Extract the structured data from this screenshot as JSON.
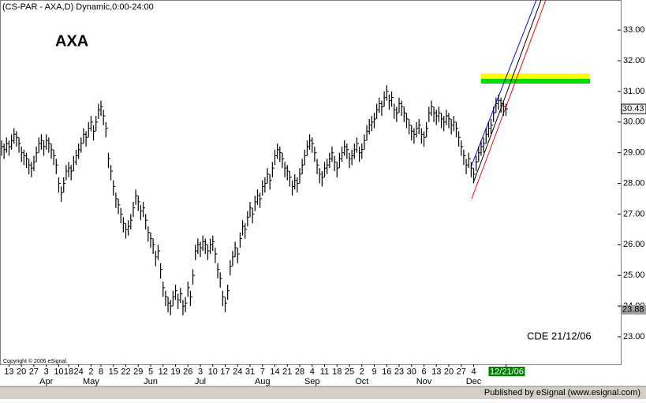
{
  "chart_data": {
    "type": "hlc",
    "header": "(CS-PAR - AXA,D) Dynamic,0:00-24:00",
    "title": "AXA",
    "annotation": "CDE 21/12/06",
    "copyright": "Copyright © 2006 eSignal.",
    "footer": "Published by eSignal (www.esignal.com)",
    "color": "#000000",
    "ylim": [
      22.1,
      33.98
    ],
    "yticks": [
      {
        "value": 33,
        "label": "33.00"
      },
      {
        "value": 32,
        "label": "32.00"
      },
      {
        "value": 31,
        "label": "31.00"
      },
      {
        "value": 30,
        "label": "30.00"
      },
      {
        "value": 29,
        "label": "29.00"
      },
      {
        "value": 28,
        "label": "28.00"
      },
      {
        "value": 27,
        "label": "27.00"
      },
      {
        "value": 26,
        "label": "26.00"
      },
      {
        "value": 25,
        "label": "25.00"
      },
      {
        "value": 24,
        "label": "24.00"
      },
      {
        "value": 23,
        "label": "23.00"
      }
    ],
    "last_value": 30.43,
    "marker_value": 23.88,
    "categories": [
      null,
      null,
      null,
      "13",
      null,
      null,
      null,
      null,
      "20",
      null,
      null,
      null,
      null,
      "27",
      null,
      null,
      null,
      null,
      "3",
      null,
      null,
      null,
      null,
      "10",
      null,
      null,
      null,
      "18",
      null,
      null,
      null,
      "24",
      null,
      null,
      null,
      null,
      "2",
      null,
      null,
      null,
      "8",
      null,
      null,
      null,
      null,
      "15",
      null,
      null,
      null,
      null,
      "22",
      null,
      null,
      null,
      null,
      "29",
      null,
      null,
      null,
      null,
      "5",
      null,
      null,
      null,
      null,
      "12",
      null,
      null,
      null,
      null,
      "19",
      null,
      null,
      null,
      null,
      "26",
      null,
      null,
      null,
      null,
      "3",
      null,
      null,
      null,
      null,
      "10",
      null,
      null,
      null,
      null,
      "17",
      null,
      null,
      null,
      null,
      "24",
      null,
      null,
      null,
      null,
      "31",
      null,
      null,
      null,
      null,
      "7",
      null,
      null,
      null,
      null,
      "14",
      null,
      null,
      null,
      null,
      "21",
      null,
      null,
      null,
      null,
      "28",
      null,
      null,
      null,
      null,
      "4",
      null,
      null,
      null,
      null,
      "11",
      null,
      null,
      null,
      null,
      "18",
      null,
      null,
      null,
      null,
      "25",
      null,
      null,
      null,
      null,
      "2",
      null,
      null,
      null,
      null,
      "9",
      null,
      null,
      null,
      null,
      "16",
      null,
      null,
      null,
      null,
      "23",
      null,
      null,
      null,
      null,
      "30",
      null,
      null,
      null,
      null,
      "6",
      null,
      null,
      null,
      null,
      "13",
      null,
      null,
      null,
      null,
      "20",
      null,
      null,
      null,
      null,
      "27",
      null,
      null,
      null,
      null,
      "4",
      null,
      null,
      null,
      null,
      null,
      null,
      null,
      null,
      null,
      null,
      null,
      null,
      "12/21/06"
    ],
    "months": [
      null,
      null,
      null,
      null,
      null,
      null,
      null,
      null,
      null,
      null,
      null,
      null,
      null,
      null,
      null,
      null,
      null,
      null,
      "Apr",
      null,
      null,
      null,
      null,
      null,
      null,
      null,
      null,
      null,
      null,
      null,
      null,
      null,
      null,
      null,
      null,
      null,
      "May",
      null,
      null,
      null,
      null,
      null,
      null,
      null,
      null,
      null,
      null,
      null,
      null,
      null,
      null,
      null,
      null,
      null,
      null,
      null,
      null,
      null,
      null,
      null,
      "Jun",
      null,
      null,
      null,
      null,
      null,
      null,
      null,
      null,
      null,
      null,
      null,
      null,
      null,
      null,
      null,
      null,
      null,
      null,
      null,
      "Jul",
      null,
      null,
      null,
      null,
      null,
      null,
      null,
      null,
      null,
      null,
      null,
      null,
      null,
      null,
      null,
      null,
      null,
      null,
      null,
      null,
      null,
      null,
      null,
      null,
      "Aug",
      null,
      null,
      null,
      null,
      null,
      null,
      null,
      null,
      null,
      null,
      null,
      null,
      null,
      null,
      null,
      null,
      null,
      null,
      null,
      "Sep",
      null,
      null,
      null,
      null,
      null,
      null,
      null,
      null,
      null,
      null,
      null,
      null,
      null,
      null,
      null,
      null,
      null,
      null,
      null,
      "Oct",
      null,
      null,
      null,
      null,
      null,
      null,
      null,
      null,
      null,
      null,
      null,
      null,
      null,
      null,
      null,
      null,
      null,
      null,
      null,
      null,
      null,
      null,
      null,
      null,
      "Nov",
      null,
      null,
      null,
      null,
      null,
      null,
      null,
      null,
      null,
      null,
      null,
      null,
      null,
      null,
      null,
      null,
      null,
      null,
      null,
      "Dec",
      null,
      null,
      null,
      null,
      null,
      null,
      null,
      null,
      null,
      null,
      null,
      null,
      null
    ],
    "high": [
      29.4,
      29.3,
      29.5,
      29.4,
      29.6,
      29.8,
      29.7,
      29.5,
      29.2,
      29.1,
      29.0,
      28.8,
      28.7,
      28.9,
      29.2,
      29.5,
      29.6,
      29.4,
      29.6,
      29.5,
      29.3,
      29.1,
      28.8,
      28.2,
      27.9,
      28.2,
      28.6,
      28.7,
      28.6,
      28.9,
      29.1,
      29.3,
      29.5,
      29.8,
      29.7,
      30.0,
      30.2,
      29.9,
      30.2,
      30.6,
      30.7,
      30.4,
      30.0,
      29.0,
      28.6,
      28.1,
      27.7,
      27.5,
      27.2,
      26.9,
      26.7,
      26.8,
      27.0,
      27.4,
      27.8,
      27.6,
      27.3,
      27.4,
      27.0,
      26.6,
      26.4,
      26.2,
      25.8,
      26.0,
      25.4,
      24.8,
      24.5,
      24.3,
      24.2,
      24.5,
      24.7,
      24.4,
      24.6,
      24.2,
      24.3,
      24.8,
      24.5,
      25.2,
      26.0,
      26.2,
      26.1,
      26.3,
      26.2,
      26.0,
      26.2,
      26.3,
      25.9,
      25.4,
      25.1,
      24.5,
      24.3,
      24.7,
      25.5,
      25.8,
      26.1,
      25.9,
      26.4,
      26.8,
      26.7,
      27.1,
      27.4,
      27.2,
      27.6,
      27.8,
      27.7,
      28.1,
      28.2,
      28.5,
      28.3,
      28.7,
      29.1,
      29.3,
      29.2,
      29.0,
      28.7,
      28.6,
      28.4,
      28.1,
      28.3,
      28.2,
      28.5,
      28.8,
      29.1,
      29.4,
      29.6,
      29.5,
      29.2,
      28.8,
      28.5,
      28.4,
      28.7,
      28.8,
      29.0,
      29.2,
      28.9,
      28.7,
      29.0,
      29.2,
      29.4,
      29.3,
      29.0,
      29.1,
      29.3,
      29.5,
      29.2,
      29.3,
      29.6,
      29.9,
      30.1,
      30.2,
      30.3,
      30.6,
      30.8,
      30.7,
      31.0,
      31.2,
      30.9,
      31.0,
      30.6,
      30.5,
      30.8,
      30.7,
      30.5,
      30.3,
      30.1,
      29.9,
      29.8,
      30.0,
      30.1,
      29.8,
      29.7,
      30.0,
      30.5,
      30.7,
      30.5,
      30.4,
      30.5,
      30.3,
      30.2,
      30.4,
      30.3,
      30.1,
      30.2,
      30.0,
      29.7,
      29.4,
      29.1,
      28.8,
      29.0,
      28.7,
      28.5,
      28.9,
      29.2,
      29.4,
      29.5,
      29.8,
      30.0,
      30.1,
      30.5,
      30.8,
      30.9,
      30.8,
      30.7,
      30.6
    ],
    "low": [
      28.9,
      28.8,
      29.0,
      28.9,
      29.1,
      29.3,
      29.2,
      29.0,
      28.7,
      28.6,
      28.5,
      28.3,
      28.2,
      28.4,
      28.7,
      29.0,
      29.1,
      28.9,
      29.1,
      29.0,
      28.8,
      28.6,
      28.3,
      27.7,
      27.4,
      27.7,
      28.1,
      28.2,
      28.1,
      28.4,
      28.6,
      28.8,
      29.0,
      29.3,
      29.2,
      29.5,
      29.7,
      29.4,
      29.7,
      30.1,
      30.2,
      29.9,
      29.5,
      28.5,
      28.1,
      27.6,
      27.2,
      27.0,
      26.7,
      26.4,
      26.2,
      26.3,
      26.5,
      26.9,
      27.3,
      27.1,
      26.8,
      26.9,
      26.5,
      26.1,
      25.9,
      25.7,
      25.3,
      25.5,
      24.9,
      24.3,
      24.0,
      23.8,
      23.7,
      24.0,
      24.2,
      23.9,
      24.1,
      23.7,
      23.8,
      24.3,
      24.0,
      24.7,
      25.5,
      25.7,
      25.6,
      25.8,
      25.7,
      25.5,
      25.7,
      25.8,
      25.4,
      24.9,
      24.6,
      24.0,
      23.8,
      24.2,
      25.0,
      25.3,
      25.6,
      25.4,
      25.9,
      26.3,
      26.2,
      26.6,
      26.9,
      26.7,
      27.1,
      27.3,
      27.2,
      27.6,
      27.7,
      28.0,
      27.8,
      28.2,
      28.6,
      28.8,
      28.7,
      28.5,
      28.2,
      28.1,
      27.9,
      27.6,
      27.8,
      27.7,
      28.0,
      28.3,
      28.6,
      28.9,
      29.1,
      29.0,
      28.7,
      28.3,
      28.0,
      27.9,
      28.2,
      28.3,
      28.5,
      28.7,
      28.4,
      28.2,
      28.5,
      28.7,
      28.9,
      28.8,
      28.5,
      28.6,
      28.8,
      29.0,
      28.7,
      28.8,
      29.1,
      29.4,
      29.6,
      29.7,
      29.8,
      30.1,
      30.3,
      30.2,
      30.5,
      30.7,
      30.4,
      30.5,
      30.1,
      30.0,
      30.3,
      30.2,
      30.0,
      29.8,
      29.6,
      29.4,
      29.3,
      29.5,
      29.6,
      29.3,
      29.2,
      29.5,
      30.0,
      30.2,
      30.0,
      29.9,
      30.0,
      29.8,
      29.7,
      29.9,
      29.8,
      29.6,
      29.7,
      29.5,
      29.2,
      28.9,
      28.6,
      28.3,
      28.5,
      28.2,
      28.0,
      28.4,
      28.7,
      28.9,
      29.0,
      29.3,
      29.5,
      29.6,
      30.0,
      30.3,
      30.4,
      30.3,
      30.2,
      30.2
    ],
    "close": [
      29.2,
      29.1,
      29.3,
      29.2,
      29.4,
      29.6,
      29.5,
      29.3,
      29.0,
      28.9,
      28.8,
      28.6,
      28.5,
      28.7,
      29.0,
      29.3,
      29.4,
      29.2,
      29.4,
      29.3,
      29.1,
      28.9,
      28.6,
      28.0,
      27.7,
      28.0,
      28.4,
      28.5,
      28.4,
      28.7,
      28.9,
      29.1,
      29.3,
      29.6,
      29.5,
      29.8,
      30.0,
      29.7,
      30.0,
      30.4,
      30.5,
      30.2,
      29.8,
      28.8,
      28.4,
      27.9,
      27.5,
      27.3,
      27.0,
      26.7,
      26.5,
      26.6,
      26.8,
      27.2,
      27.6,
      27.4,
      27.1,
      27.2,
      26.8,
      26.4,
      26.2,
      26.0,
      25.6,
      25.8,
      25.2,
      24.6,
      24.3,
      24.1,
      24.0,
      24.3,
      24.5,
      24.2,
      24.4,
      24.0,
      24.1,
      24.6,
      24.3,
      25.0,
      25.8,
      26.0,
      25.9,
      26.1,
      26.0,
      25.8,
      26.0,
      26.1,
      25.7,
      25.2,
      24.9,
      24.3,
      24.1,
      24.5,
      25.3,
      25.6,
      25.9,
      25.7,
      26.2,
      26.6,
      26.5,
      26.9,
      27.2,
      27.0,
      27.4,
      27.6,
      27.5,
      27.9,
      28.0,
      28.3,
      28.1,
      28.5,
      28.9,
      29.1,
      29.0,
      28.8,
      28.5,
      28.4,
      28.2,
      27.9,
      28.1,
      28.0,
      28.3,
      28.6,
      28.9,
      29.2,
      29.4,
      29.3,
      29.0,
      28.6,
      28.3,
      28.2,
      28.5,
      28.6,
      28.8,
      29.0,
      28.7,
      28.5,
      28.8,
      29.0,
      29.2,
      29.1,
      28.8,
      28.9,
      29.1,
      29.3,
      29.0,
      29.1,
      29.4,
      29.7,
      29.9,
      30.0,
      30.1,
      30.4,
      30.6,
      30.5,
      30.8,
      31.0,
      30.7,
      30.8,
      30.4,
      30.3,
      30.6,
      30.5,
      30.3,
      30.1,
      29.9,
      29.7,
      29.6,
      29.8,
      29.9,
      29.6,
      29.5,
      29.8,
      30.3,
      30.5,
      30.3,
      30.2,
      30.3,
      30.1,
      30.0,
      30.2,
      30.1,
      29.9,
      30.0,
      29.8,
      29.5,
      29.2,
      28.9,
      28.6,
      28.8,
      28.5,
      28.3,
      28.7,
      29.0,
      29.2,
      29.3,
      29.6,
      29.8,
      29.9,
      30.3,
      30.6,
      30.7,
      30.6,
      30.5,
      30.43
    ]
  }
}
